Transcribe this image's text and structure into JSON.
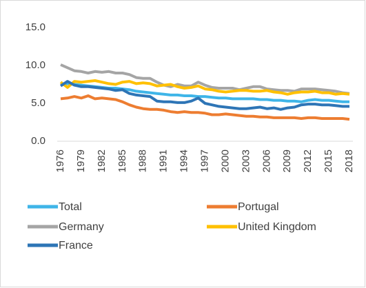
{
  "chart_data": {
    "type": "line",
    "x": [
      1976,
      1977,
      1978,
      1979,
      1980,
      1981,
      1982,
      1983,
      1984,
      1985,
      1986,
      1987,
      1988,
      1989,
      1990,
      1991,
      1992,
      1993,
      1994,
      1995,
      1996,
      1997,
      1998,
      1999,
      2000,
      2001,
      2002,
      2003,
      2004,
      2005,
      2006,
      2007,
      2008,
      2009,
      2010,
      2011,
      2012,
      2013,
      2014,
      2015,
      2016,
      2017,
      2018
    ],
    "xlim": [
      1976,
      2018
    ],
    "xticks": [
      1976,
      1979,
      1982,
      1985,
      1988,
      1991,
      1994,
      1997,
      2000,
      2003,
      2006,
      2009,
      2012,
      2015,
      2018
    ],
    "ylim": [
      0,
      15
    ],
    "yticks": [
      {
        "value": 0,
        "label": "0.0"
      },
      {
        "value": 5,
        "label": "5.0"
      },
      {
        "value": 10,
        "label": "10.0"
      },
      {
        "value": 15,
        "label": "15.0"
      }
    ],
    "grid": false,
    "legend": "bottom",
    "series": [
      {
        "name": "Total",
        "color": "#3fb5e8",
        "values": [
          7.5,
          7.6,
          7.5,
          7.4,
          7.3,
          7.2,
          7.1,
          7.0,
          7.0,
          6.9,
          6.8,
          6.6,
          6.5,
          6.4,
          6.3,
          6.2,
          6.1,
          6.1,
          6.0,
          6.0,
          5.9,
          5.9,
          5.8,
          5.7,
          5.7,
          5.6,
          5.6,
          5.6,
          5.6,
          5.5,
          5.5,
          5.4,
          5.4,
          5.3,
          5.3,
          5.2,
          5.4,
          5.5,
          5.4,
          5.4,
          5.3,
          5.2,
          5.2
        ]
      },
      {
        "name": "Portugal",
        "color": "#ed7d31",
        "values": [
          5.6,
          5.7,
          5.9,
          5.7,
          6.0,
          5.6,
          5.7,
          5.6,
          5.5,
          5.2,
          4.8,
          4.5,
          4.3,
          4.2,
          4.2,
          4.1,
          3.9,
          3.8,
          3.9,
          3.8,
          3.8,
          3.7,
          3.5,
          3.5,
          3.6,
          3.5,
          3.4,
          3.3,
          3.3,
          3.2,
          3.2,
          3.1,
          3.1,
          3.1,
          3.1,
          3.0,
          3.1,
          3.1,
          3.0,
          3.0,
          3.0,
          3.0,
          2.9
        ]
      },
      {
        "name": "Germany",
        "color": "#a5a5a5",
        "values": [
          10.1,
          9.7,
          9.3,
          9.2,
          9.0,
          9.2,
          9.1,
          9.2,
          9.0,
          9.0,
          8.8,
          8.4,
          8.3,
          8.3,
          7.8,
          7.4,
          7.2,
          7.5,
          7.3,
          7.3,
          7.8,
          7.4,
          7.1,
          7.0,
          7.0,
          7.0,
          6.8,
          7.0,
          7.2,
          7.2,
          6.9,
          6.8,
          6.7,
          6.7,
          6.6,
          6.9,
          6.9,
          6.9,
          6.8,
          6.7,
          6.6,
          6.4,
          6.3
        ]
      },
      {
        "name": "United Kingdom",
        "color": "#ffc000",
        "values": [
          7.8,
          7.1,
          7.9,
          7.8,
          7.9,
          8.0,
          7.8,
          7.6,
          7.5,
          7.8,
          7.9,
          7.6,
          7.7,
          7.6,
          7.3,
          7.4,
          7.5,
          7.2,
          7.0,
          7.1,
          7.3,
          6.9,
          6.8,
          6.6,
          6.5,
          6.6,
          6.7,
          6.7,
          6.6,
          6.6,
          6.7,
          6.5,
          6.4,
          6.2,
          6.4,
          6.5,
          6.5,
          6.6,
          6.4,
          6.4,
          6.2,
          6.3,
          6.2
        ]
      },
      {
        "name": "France",
        "color": "#2e75b6",
        "values": [
          7.3,
          7.9,
          7.4,
          7.2,
          7.2,
          7.1,
          7.0,
          6.9,
          6.7,
          6.8,
          6.3,
          6.1,
          6.0,
          5.9,
          5.3,
          5.2,
          5.2,
          5.1,
          5.1,
          5.3,
          5.7,
          5.0,
          4.8,
          4.6,
          4.5,
          4.4,
          4.3,
          4.3,
          4.4,
          4.5,
          4.3,
          4.4,
          4.2,
          4.4,
          4.5,
          4.8,
          4.9,
          4.9,
          4.8,
          4.8,
          4.7,
          4.6,
          4.6
        ]
      }
    ]
  }
}
